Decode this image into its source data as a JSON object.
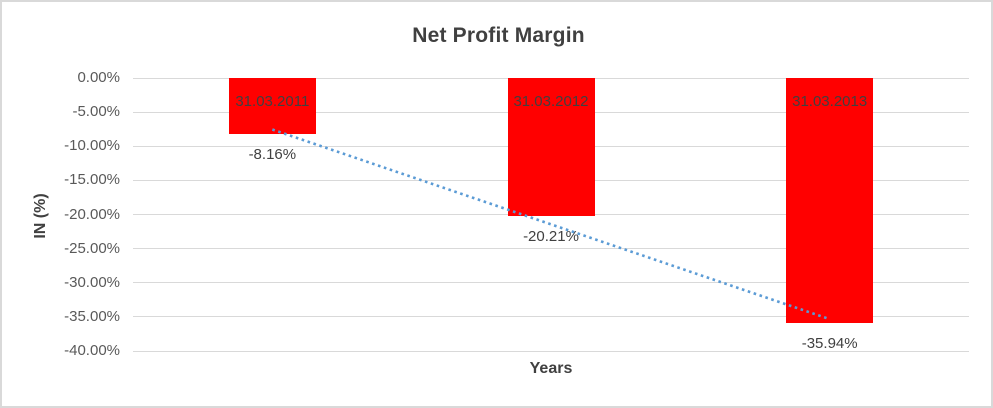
{
  "window": {
    "background": "#FFFFFF",
    "border_color": "#D9D9D9"
  },
  "chart_data": {
    "type": "bar",
    "title": "Net Profit Margin",
    "xlabel": "Years",
    "ylabel": "IN (%)",
    "categories": [
      "31.03.2011",
      "31.03.2012",
      "31.03.2013"
    ],
    "values": [
      -8.16,
      -20.21,
      -35.94
    ],
    "value_labels": [
      "-8.16%",
      "-20.21%",
      "-35.94%"
    ],
    "ylim": [
      -40,
      0
    ],
    "y_tick_step": 5,
    "y_tick_labels": [
      "0.00%",
      "-5.00%",
      "-10.00%",
      "-15.00%",
      "-20.00%",
      "-25.00%",
      "-30.00%",
      "-35.00%",
      "-40.00%"
    ],
    "grid": true,
    "legend": false,
    "bar_color": "#FF0000",
    "gridline_color": "#D9D9D9",
    "tick_label_color": "#595959",
    "data_label_color": "#404040",
    "title_color": "#404040",
    "trendline": {
      "type": "linear",
      "style": "dotted",
      "color": "#5B9BD5",
      "start_value": -7.55,
      "end_value": -35.33
    }
  }
}
